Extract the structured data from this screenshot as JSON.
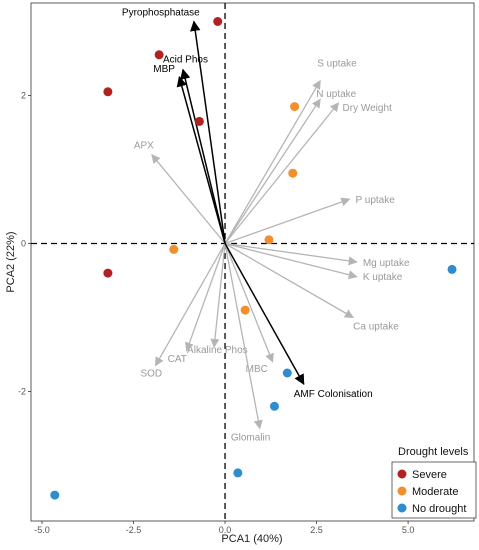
{
  "chart_data": {
    "type": "scatter",
    "title": "",
    "xlabel": "PCA1 (40%)",
    "ylabel": "PCA2 (22%)",
    "xlim": [
      -5.3,
      6.8
    ],
    "ylim": [
      -3.75,
      3.25
    ],
    "x_ticks": [
      -5.0,
      -2.5,
      0.0,
      2.5,
      5.0
    ],
    "x_tick_labels": [
      "-5.0",
      "-2.5",
      "0.0",
      "2.5",
      "5.0"
    ],
    "y_ticks": [
      2,
      0,
      -2
    ],
    "y_tick_labels": [
      "2",
      "0",
      "-2"
    ],
    "reference_lines": {
      "x": 0,
      "y": 0,
      "style": "dashed"
    },
    "legend": {
      "title": "Drought levels",
      "position": "bottom-right",
      "entries": [
        "Severe",
        "Moderate",
        "No drought"
      ]
    },
    "series": [
      {
        "name": "Severe",
        "color": "#b22222",
        "points": [
          {
            "x": -0.2,
            "y": 3.0
          },
          {
            "x": -1.8,
            "y": 2.55
          },
          {
            "x": -3.2,
            "y": 2.05
          },
          {
            "x": -0.7,
            "y": 1.65
          },
          {
            "x": -3.2,
            "y": -0.4
          }
        ]
      },
      {
        "name": "Moderate",
        "color": "#f28e2b",
        "points": [
          {
            "x": 1.9,
            "y": 1.85
          },
          {
            "x": 1.85,
            "y": 0.95
          },
          {
            "x": 1.2,
            "y": 0.05
          },
          {
            "x": -1.4,
            "y": -0.08
          },
          {
            "x": 0.55,
            "y": -0.9
          }
        ]
      },
      {
        "name": "No drought",
        "color": "#2e8ccf",
        "points": [
          {
            "x": 6.2,
            "y": -0.35
          },
          {
            "x": 1.7,
            "y": -1.75
          },
          {
            "x": 1.35,
            "y": -2.2
          },
          {
            "x": 0.35,
            "y": -3.1
          },
          {
            "x": -4.65,
            "y": -3.4
          }
        ]
      }
    ],
    "loadings": [
      {
        "label": "Pyrophosphatase",
        "x": -0.85,
        "y": 3.0,
        "color": "#000000"
      },
      {
        "label": "Acid Phos",
        "x": -1.15,
        "y": 2.35,
        "color": "#000000"
      },
      {
        "label": "MBP",
        "x": -1.25,
        "y": 2.25,
        "color": "#000000"
      },
      {
        "label": "AMF Colonisation",
        "x": 2.15,
        "y": -1.9,
        "color": "#000000"
      },
      {
        "label": "S uptake",
        "x": 2.6,
        "y": 2.2,
        "color": "#a9a9a9"
      },
      {
        "label": "N uptake",
        "x": 2.6,
        "y": 1.95,
        "color": "#a9a9a9"
      },
      {
        "label": "Dry Weight",
        "x": 3.1,
        "y": 1.9,
        "color": "#a9a9a9"
      },
      {
        "label": "APX",
        "x": -2.0,
        "y": 1.2,
        "color": "#a9a9a9"
      },
      {
        "label": "P uptake",
        "x": 3.4,
        "y": 0.6,
        "color": "#a9a9a9"
      },
      {
        "label": "Mg uptake",
        "x": 3.6,
        "y": -0.25,
        "color": "#a9a9a9"
      },
      {
        "label": "K uptake",
        "x": 3.6,
        "y": -0.45,
        "color": "#a9a9a9"
      },
      {
        "label": "Ca uptake",
        "x": 3.5,
        "y": -1.0,
        "color": "#a9a9a9"
      },
      {
        "label": "Alkaline Phos",
        "x": -0.3,
        "y": -1.4,
        "color": "#a9a9a9"
      },
      {
        "label": "CAT",
        "x": -1.05,
        "y": -1.45,
        "color": "#a9a9a9"
      },
      {
        "label": "SOD",
        "x": -1.9,
        "y": -1.65,
        "color": "#a9a9a9"
      },
      {
        "label": "MBC",
        "x": 1.3,
        "y": -1.6,
        "color": "#a9a9a9"
      },
      {
        "label": "Glomalin",
        "x": 0.95,
        "y": -2.5,
        "color": "#a9a9a9"
      }
    ]
  }
}
